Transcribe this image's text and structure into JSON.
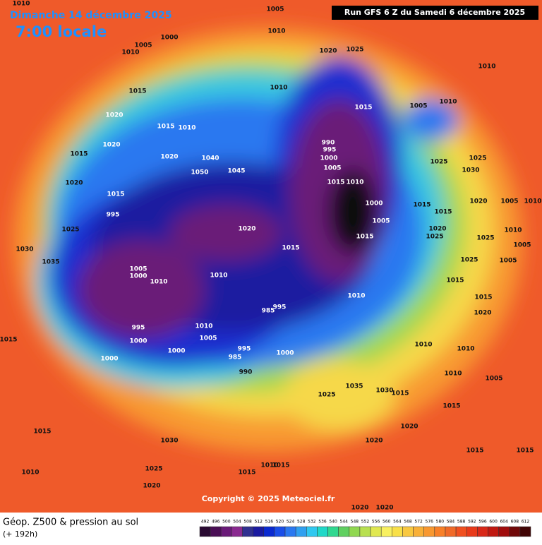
{
  "header": {
    "date": "Dimanche 14 décembre 2025",
    "time": "7:00 locale",
    "run": "Run GFS 6 Z du Samedi 6 décembre 2025"
  },
  "copyright": "Copyright © 2025 Meteociel.fr",
  "footer": {
    "title": "Géop. Z500 & pression au sol",
    "subtitle": "(+ 192h)"
  },
  "isobar_labels": [
    "1010",
    "1005",
    "1010",
    "1000",
    "1005",
    "1010",
    "1020",
    "1025",
    "1010",
    "1010",
    "1015",
    "1015",
    "1005",
    "1010",
    "1020",
    "1015",
    "1010",
    "990",
    "995",
    "1000",
    "1020",
    "1015",
    "1020",
    "1040",
    "1025",
    "1025",
    "1050",
    "1045",
    "1005",
    "1030",
    "1020",
    "1015",
    "1010",
    "1015",
    "1000",
    "1015",
    "1015",
    "1020",
    "1005",
    "1010",
    "995",
    "1005",
    "1020",
    "1025",
    "1020",
    "1025",
    "1025",
    "1010",
    "1005",
    "1015",
    "1015",
    "1030",
    "1035",
    "1025",
    "1005",
    "1005",
    "1000",
    "1010",
    "1010",
    "1015",
    "1010",
    "1015",
    "1020",
    "995",
    "985",
    "995",
    "1010",
    "1000",
    "1005",
    "1015",
    "1010",
    "1010",
    "995",
    "1000",
    "1000",
    "985",
    "990",
    "1000",
    "1010",
    "1005",
    "1035",
    "1030",
    "1025",
    "1015",
    "1015",
    "1020",
    "1015",
    "1030",
    "1020",
    "1015",
    "1015",
    "1010",
    "1025",
    "1015",
    "1010",
    "1015",
    "1020",
    "1020",
    "1020"
  ],
  "legend": {
    "values": [
      492,
      496,
      500,
      504,
      508,
      512,
      516,
      520,
      524,
      528,
      532,
      536,
      540,
      544,
      548,
      552,
      556,
      560,
      564,
      568,
      572,
      576,
      580,
      584,
      588,
      592,
      596,
      600,
      604,
      608,
      612
    ],
    "colors": [
      "#2a0a32",
      "#4a0f55",
      "#6a1a78",
      "#8a2a90",
      "#303090",
      "#1a1aa0",
      "#0a2ad0",
      "#1a4ee8",
      "#2a78f0",
      "#30a0f0",
      "#30c8f0",
      "#20d8c8",
      "#30d890",
      "#60d060",
      "#90d850",
      "#b8e050",
      "#e0e850",
      "#f8f060",
      "#f8e048",
      "#f8c840",
      "#f8b038",
      "#f89830",
      "#f88028",
      "#f06a28",
      "#f05020",
      "#e83a1a",
      "#d82818",
      "#c01810",
      "#a00c0c",
      "#700808",
      "#400404"
    ]
  }
}
